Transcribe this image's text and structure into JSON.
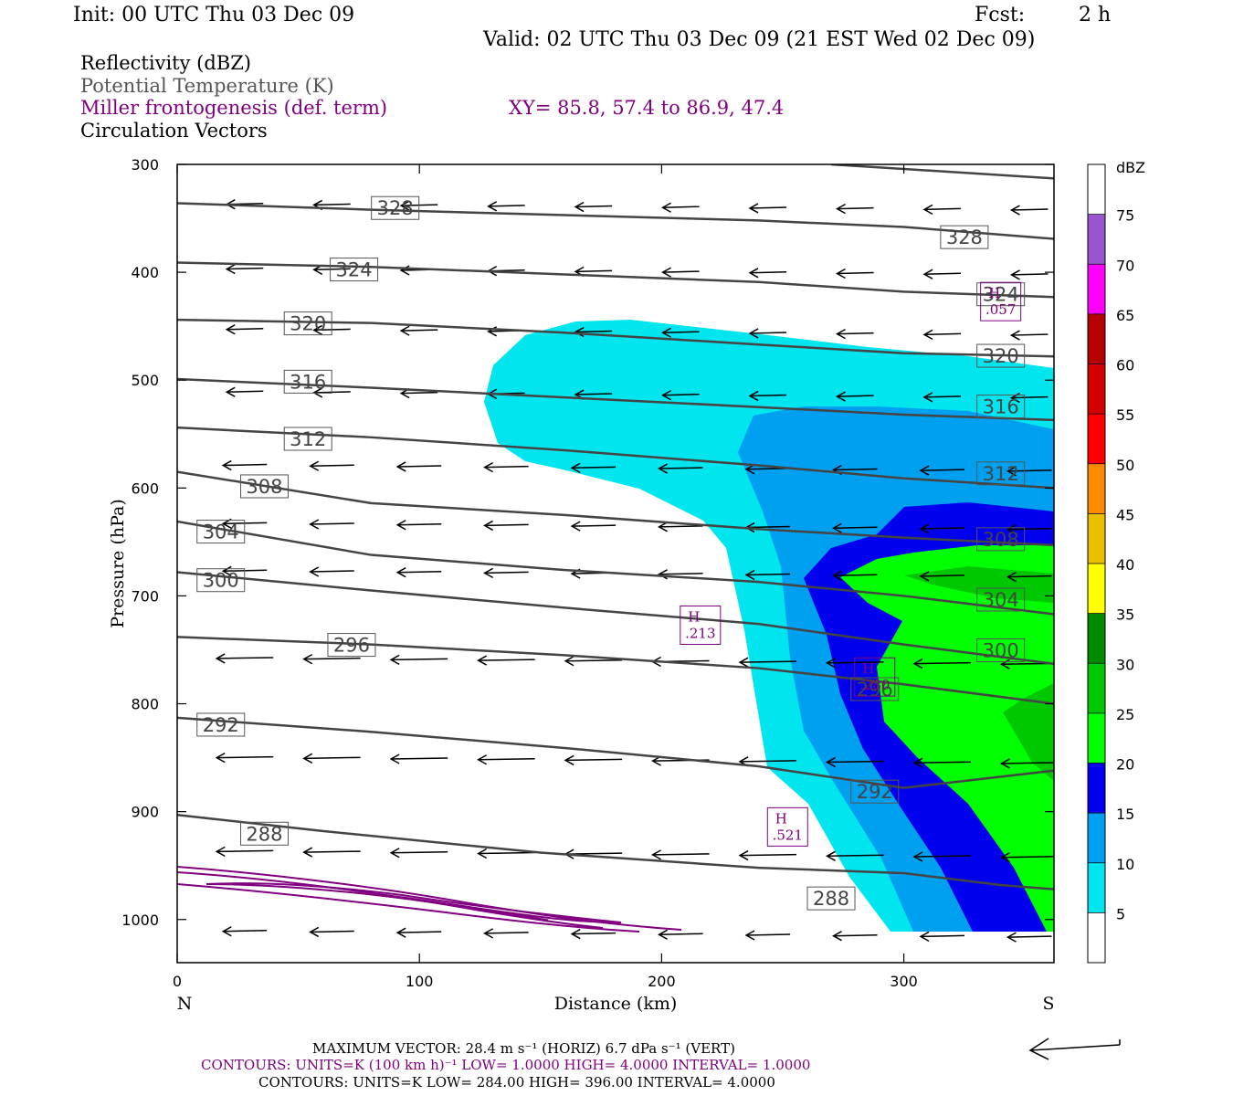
{
  "header": {
    "init": "Init: 00 UTC Thu 03 Dec 09",
    "fcst_label": "Fcst:",
    "fcst_value": "2 h",
    "valid": "Valid: 02 UTC Thu 03 Dec 09 (21 EST Wed 02 Dec 09)"
  },
  "legend_text": {
    "reflectivity": "Reflectivity (dBZ)",
    "theta": "Potential Temperature (K)",
    "miller": "Miller frontogenesis (def. term)",
    "xy": "XY=  85.8, 57.4 to  86.9, 47.4",
    "vectors": "Circulation Vectors"
  },
  "footer": {
    "max_vector": "MAXIMUM VECTOR:  28.4 m s⁻¹ (HORIZ)          6.7 dPa s⁻¹ (VERT)",
    "contours1": "CONTOURS:  UNITS=K (100 km h)⁻¹  LOW=   1.0000        HIGH=   4.0000        INTERVAL=    1.0000",
    "contours2": "CONTOURS:  UNITS=K  LOW=   284.00         HIGH=   396.00         INTERVAL=     4.0000"
  },
  "colors": {
    "theta_line": "#444444",
    "frontogenesis": "#800080",
    "ref_5": "#00e5ee",
    "ref_10": "#00a0f0",
    "ref_15": "#0000ee",
    "ref_20": "#00ff00",
    "ref_25": "#00c800",
    "ref_30": "#008a00"
  },
  "chart_data": {
    "type": "heatmap",
    "xlabel": "Distance (km)",
    "ylabel": "Pressure (hPa)",
    "x_ticks": [
      "0",
      "100",
      "200",
      "300"
    ],
    "y_ticks": [
      "300",
      "400",
      "500",
      "600",
      "700",
      "800",
      "900",
      "1000"
    ],
    "xlim": [
      0,
      362
    ],
    "ylim": [
      300,
      1040
    ],
    "x_end_labels": {
      "left": "N",
      "right": "S"
    },
    "colorbar": {
      "unit": "dBZ",
      "labels": [
        "5",
        "10",
        "15",
        "20",
        "25",
        "30",
        "35",
        "40",
        "45",
        "50",
        "55",
        "60",
        "65",
        "70",
        "75"
      ],
      "colors": [
        "#ffffff",
        "#00e5ee",
        "#00a0f0",
        "#0000ee",
        "#00ff00",
        "#00c800",
        "#008a00",
        "#ffff00",
        "#e8c000",
        "#ff8c00",
        "#ff0000",
        "#d40000",
        "#b40000",
        "#ff00ff",
        "#9955cc",
        "#ffffff"
      ]
    },
    "theta_contours": [
      {
        "label": "288",
        "points": [
          [
            0,
            903
          ],
          [
            60,
            918
          ],
          [
            150,
            938
          ],
          [
            240,
            952
          ],
          [
            300,
            957
          ],
          [
            340,
            968
          ],
          [
            362,
            972
          ]
        ]
      },
      {
        "label": "292",
        "points": [
          [
            0,
            813
          ],
          [
            80,
            826
          ],
          [
            160,
            841
          ],
          [
            240,
            858
          ],
          [
            300,
            878
          ],
          [
            362,
            862
          ]
        ]
      },
      {
        "label": "296",
        "points": [
          [
            0,
            738
          ],
          [
            80,
            745
          ],
          [
            160,
            755
          ],
          [
            240,
            767
          ],
          [
            300,
            782
          ],
          [
            362,
            800
          ]
        ]
      },
      {
        "label": "300",
        "points": [
          [
            0,
            678
          ],
          [
            80,
            695
          ],
          [
            160,
            711
          ],
          [
            240,
            726
          ],
          [
            300,
            745
          ],
          [
            362,
            763
          ]
        ]
      },
      {
        "label": "304",
        "points": [
          [
            0,
            631
          ],
          [
            80,
            662
          ],
          [
            160,
            676
          ],
          [
            240,
            687
          ],
          [
            300,
            700
          ],
          [
            362,
            717
          ]
        ]
      },
      {
        "label": "308",
        "points": [
          [
            0,
            585
          ],
          [
            80,
            614
          ],
          [
            160,
            625
          ],
          [
            240,
            638
          ],
          [
            300,
            646
          ],
          [
            362,
            653
          ]
        ]
      },
      {
        "label": "312",
        "points": [
          [
            0,
            544
          ],
          [
            80,
            553
          ],
          [
            160,
            565
          ],
          [
            240,
            579
          ],
          [
            300,
            591
          ],
          [
            362,
            600
          ]
        ]
      },
      {
        "label": "316",
        "points": [
          [
            0,
            499
          ],
          [
            80,
            507
          ],
          [
            160,
            516
          ],
          [
            240,
            525
          ],
          [
            300,
            532
          ],
          [
            362,
            537
          ]
        ]
      },
      {
        "label": "320",
        "points": [
          [
            0,
            444
          ],
          [
            80,
            447
          ],
          [
            160,
            456
          ],
          [
            240,
            467
          ],
          [
            300,
            475
          ],
          [
            362,
            478
          ]
        ]
      },
      {
        "label": "324",
        "points": [
          [
            0,
            391
          ],
          [
            80,
            395
          ],
          [
            160,
            402
          ],
          [
            240,
            409
          ],
          [
            300,
            418
          ],
          [
            362,
            423
          ]
        ]
      },
      {
        "label": "328",
        "points": [
          [
            0,
            336
          ],
          [
            80,
            342
          ],
          [
            160,
            347
          ],
          [
            240,
            352
          ],
          [
            300,
            358
          ],
          [
            362,
            369
          ]
        ]
      },
      {
        "label": "",
        "points": [
          [
            270,
            300
          ],
          [
            362,
            313
          ]
        ]
      }
    ],
    "theta_labels": [
      {
        "text": "328",
        "x": 90,
        "p": 340
      },
      {
        "text": "328",
        "x": 325,
        "p": 367
      },
      {
        "text": "324",
        "x": 73,
        "p": 397
      },
      {
        "text": "324",
        "x": 340,
        "p": 420
      },
      {
        "text": "320",
        "x": 54,
        "p": 447
      },
      {
        "text": "320",
        "x": 340,
        "p": 477
      },
      {
        "text": "316",
        "x": 54,
        "p": 501
      },
      {
        "text": "316",
        "x": 340,
        "p": 524
      },
      {
        "text": "312",
        "x": 54,
        "p": 554
      },
      {
        "text": "312",
        "x": 340,
        "p": 586
      },
      {
        "text": "308",
        "x": 36,
        "p": 598
      },
      {
        "text": "308",
        "x": 340,
        "p": 647
      },
      {
        "text": "304",
        "x": 18,
        "p": 640
      },
      {
        "text": "304",
        "x": 340,
        "p": 703
      },
      {
        "text": "300",
        "x": 18,
        "p": 685
      },
      {
        "text": "300",
        "x": 340,
        "p": 750
      },
      {
        "text": "296",
        "x": 72,
        "p": 745
      },
      {
        "text": "296",
        "x": 288,
        "p": 786
      },
      {
        "text": "292",
        "x": 18,
        "p": 819
      },
      {
        "text": "292",
        "x": 288,
        "p": 881
      },
      {
        "text": "288",
        "x": 36,
        "p": 920
      },
      {
        "text": "288",
        "x": 270,
        "p": 980
      }
    ],
    "frontogenesis_highs": [
      {
        "label": "H",
        "value": ".057",
        "x": 340,
        "p": 428
      },
      {
        "label": "H",
        "value": ".213",
        "x": 216,
        "p": 728
      },
      {
        "label": "H",
        "value": ".280",
        "x": 288,
        "p": 776
      },
      {
        "label": "H",
        "value": ".521",
        "x": 252,
        "p": 915
      }
    ],
    "vector_rows_p": [
      336,
      396,
      452,
      510,
      578,
      632,
      676,
      757,
      849,
      936,
      1010
    ]
  }
}
